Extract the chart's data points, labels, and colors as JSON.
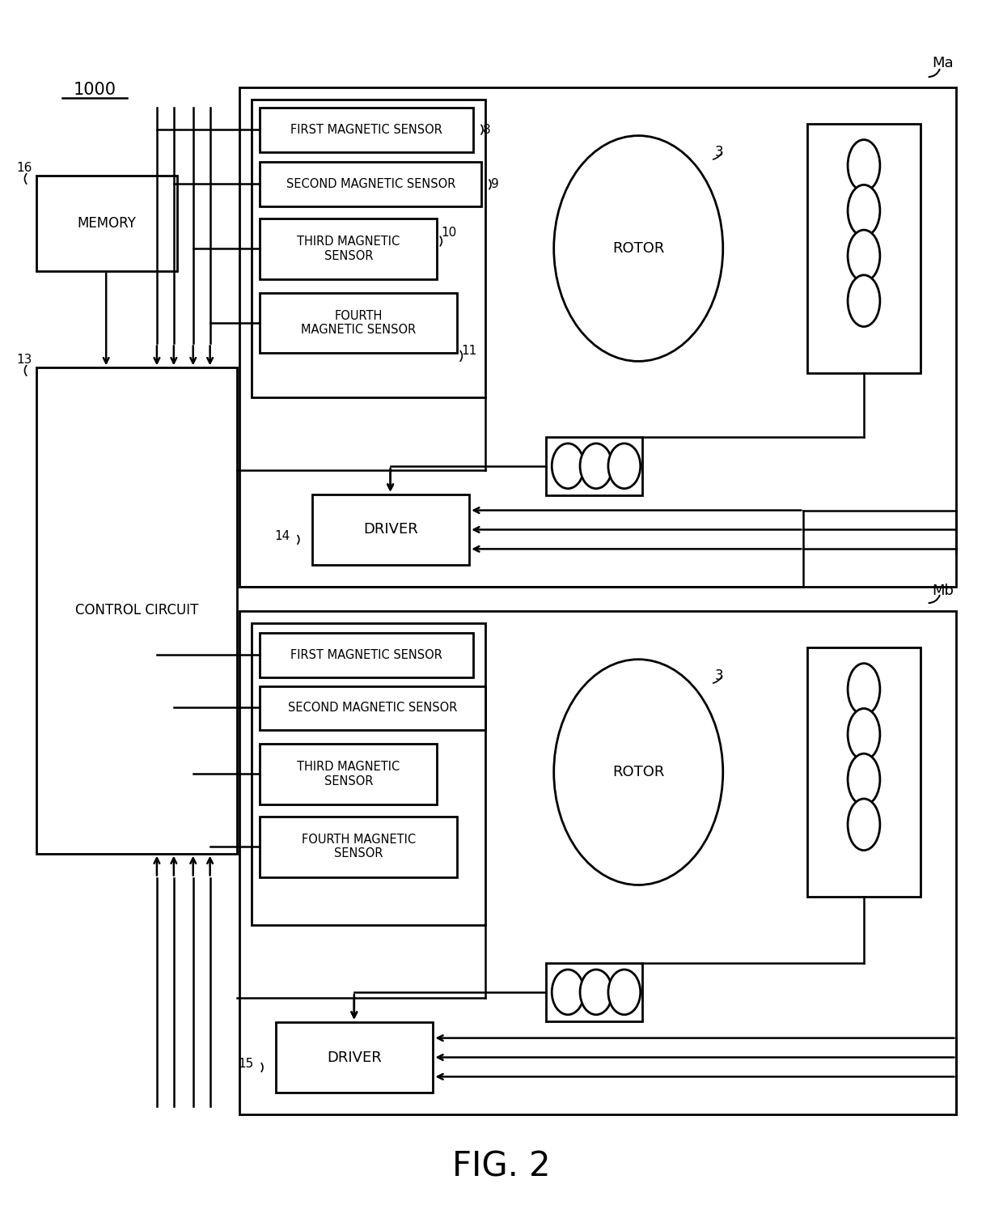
{
  "bg_color": "#ffffff",
  "title": "FIG. 2",
  "title_fontsize": 30,
  "label_1000": "1000",
  "label_Ma": "Ma",
  "label_Mb": "Mb",
  "label_memory": "MEMORY",
  "label_control": "CONTROL CIRCUIT",
  "label_driver1": "DRIVER",
  "label_driver2": "DRIVER",
  "label_rotor": "ROTOR",
  "label_fms": "FIRST MAGNETIC SENSOR",
  "label_sms": "SECOND MAGNETIC SENSOR",
  "label_tms": "THIRD MAGNETIC\nSENSOR",
  "label_4ms": "FOURTH\nMAGNETIC SENSOR",
  "label_fms2": "FIRST MAGNETIC SENSOR",
  "label_sms2": "SECOND MAGNETIC SENSOR",
  "label_tms2": "THIRD MAGNETIC\nSENSOR",
  "label_4ms2": "FOURTH MAGNETIC\nSENSOR",
  "num_8": "8",
  "num_9": "9",
  "num_10": "10",
  "num_11": "11",
  "num_13": "13",
  "num_14": "14",
  "num_15": "15",
  "num_16": "16",
  "num_3": "3"
}
